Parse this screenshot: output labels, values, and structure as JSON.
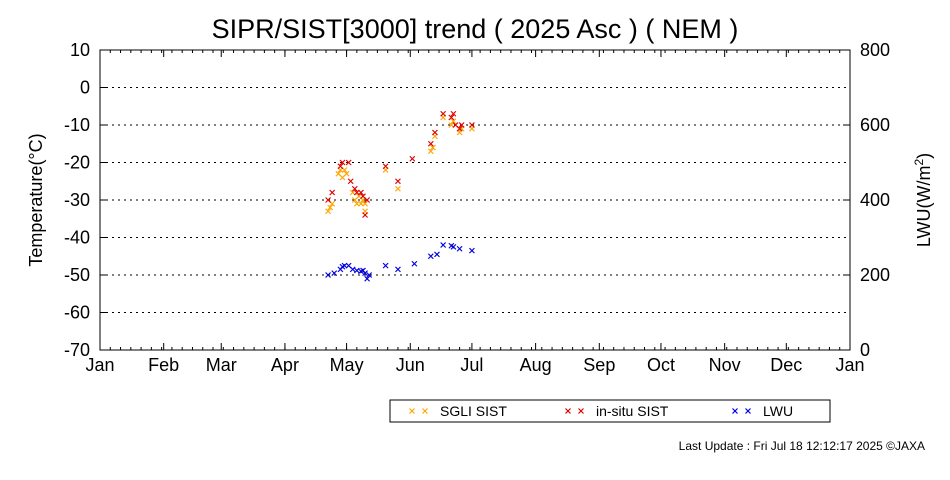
{
  "chart_data": {
    "type": "scatter",
    "title": "SIPR/SIST[3000] trend ( 2025 Asc ) ( NEM )",
    "ylabel": "Temperature(°C)",
    "y2label_main": "LWU(W/m",
    "y2label_sup": "2",
    "y2label_close": ")",
    "ylim": [
      -70,
      10
    ],
    "y2lim": [
      0,
      800
    ],
    "yticks": [
      "10",
      "0",
      "-10",
      "-20",
      "-30",
      "-40",
      "-50",
      "-60",
      "-70"
    ],
    "y2ticks": [
      "800",
      "600",
      "400",
      "200",
      "0"
    ],
    "xticks": [
      "Jan",
      "Feb",
      "Mar",
      "Apr",
      "May",
      "Jun",
      "Jul",
      "Aug",
      "Sep",
      "Oct",
      "Nov",
      "Dec",
      "Jan"
    ],
    "grid": "horizontal dotted",
    "legend_position": "bottom",
    "series": [
      {
        "name": "SGLI SIST",
        "color": "#ffa500",
        "marker": "x",
        "axis": "left",
        "points": [
          [
            "2025-04-22",
            -33
          ],
          [
            "2025-04-23",
            -32
          ],
          [
            "2025-04-24",
            -31
          ],
          [
            "2025-04-27",
            -23
          ],
          [
            "2025-04-28",
            -22
          ],
          [
            "2025-04-29",
            -24
          ],
          [
            "2025-04-30",
            -22
          ],
          [
            "2025-05-01",
            -23
          ],
          [
            "2025-05-04",
            -28
          ],
          [
            "2025-05-05",
            -30
          ],
          [
            "2025-05-06",
            -31
          ],
          [
            "2025-05-07",
            -29
          ],
          [
            "2025-05-08",
            -31
          ],
          [
            "2025-05-09",
            -30
          ],
          [
            "2025-05-10",
            -31
          ],
          [
            "2025-05-10",
            -33
          ],
          [
            "2025-05-20",
            -22
          ],
          [
            "2025-05-26",
            -27
          ],
          [
            "2025-06-11",
            -17
          ],
          [
            "2025-06-12",
            -16
          ],
          [
            "2025-06-13",
            -13
          ],
          [
            "2025-06-17",
            -8
          ],
          [
            "2025-06-21",
            -10
          ],
          [
            "2025-06-22",
            -9
          ],
          [
            "2025-06-25",
            -12
          ],
          [
            "2025-06-26",
            -11
          ],
          [
            "2025-07-01",
            -11
          ]
        ]
      },
      {
        "name": "in-situ SIST",
        "color": "#e00000",
        "marker": "x",
        "axis": "left",
        "points": [
          [
            "2025-04-22",
            -30
          ],
          [
            "2025-04-24",
            -28
          ],
          [
            "2025-04-28",
            -21
          ],
          [
            "2025-04-29",
            -20
          ],
          [
            "2025-05-02",
            -20
          ],
          [
            "2025-05-03",
            -25
          ],
          [
            "2025-05-05",
            -27
          ],
          [
            "2025-05-06",
            -28
          ],
          [
            "2025-05-08",
            -28
          ],
          [
            "2025-05-09",
            -29
          ],
          [
            "2025-05-10",
            -34
          ],
          [
            "2025-05-11",
            -30
          ],
          [
            "2025-05-20",
            -21
          ],
          [
            "2025-05-26",
            -25
          ],
          [
            "2025-06-02",
            -19
          ],
          [
            "2025-06-11",
            -15
          ],
          [
            "2025-06-13",
            -12
          ],
          [
            "2025-06-17",
            -7
          ],
          [
            "2025-06-21",
            -8
          ],
          [
            "2025-06-22",
            -7
          ],
          [
            "2025-06-23",
            -10
          ],
          [
            "2025-06-25",
            -11
          ],
          [
            "2025-06-26",
            -10
          ],
          [
            "2025-07-01",
            -10
          ]
        ]
      },
      {
        "name": "LWU",
        "color": "#0000e0",
        "marker": "x",
        "axis": "right",
        "points": [
          [
            "2025-04-22",
            200
          ],
          [
            "2025-04-25",
            205
          ],
          [
            "2025-04-28",
            215
          ],
          [
            "2025-04-29",
            222
          ],
          [
            "2025-04-30",
            225
          ],
          [
            "2025-05-02",
            225
          ],
          [
            "2025-05-04",
            215
          ],
          [
            "2025-05-06",
            212
          ],
          [
            "2025-05-08",
            210
          ],
          [
            "2025-05-09",
            212
          ],
          [
            "2025-05-10",
            205
          ],
          [
            "2025-05-11",
            190
          ],
          [
            "2025-05-12",
            200
          ],
          [
            "2025-05-20",
            225
          ],
          [
            "2025-05-26",
            215
          ],
          [
            "2025-06-03",
            230
          ],
          [
            "2025-06-11",
            250
          ],
          [
            "2025-06-14",
            255
          ],
          [
            "2025-06-17",
            280
          ],
          [
            "2025-06-21",
            278
          ],
          [
            "2025-06-22",
            275
          ],
          [
            "2025-06-25",
            270
          ],
          [
            "2025-07-01",
            265
          ]
        ]
      }
    ]
  },
  "footer": "Last Update : Fri Jul 18 12:12:17 2025  ©JAXA"
}
